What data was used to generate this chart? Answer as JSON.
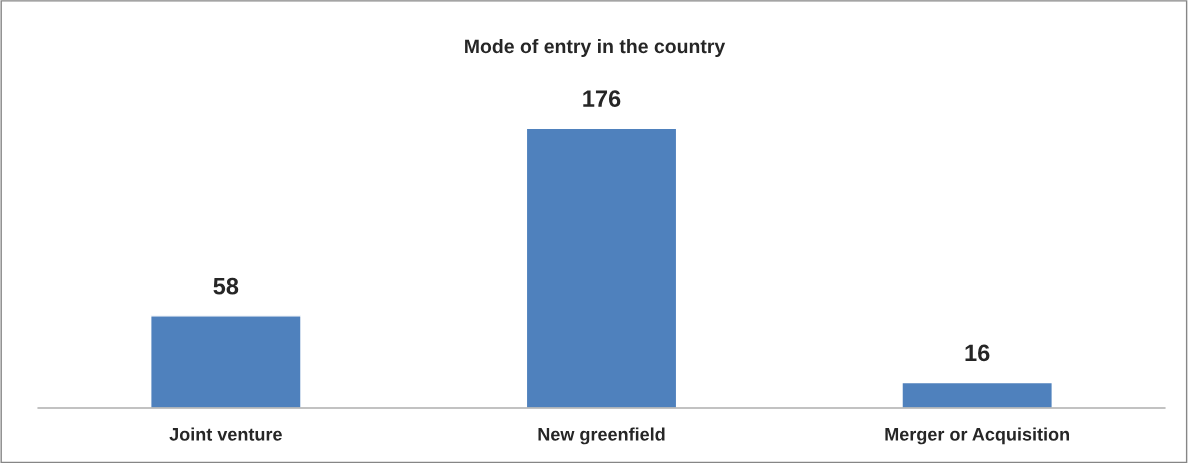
{
  "chart_data": {
    "type": "bar",
    "title": "Mode of entry in the country",
    "categories": [
      "Joint venture",
      "New greenfield",
      "Merger or Acquisition"
    ],
    "values": [
      58,
      176,
      16
    ],
    "color": "#4f81bd",
    "data_labels": true,
    "grid": false,
    "legend": false
  }
}
